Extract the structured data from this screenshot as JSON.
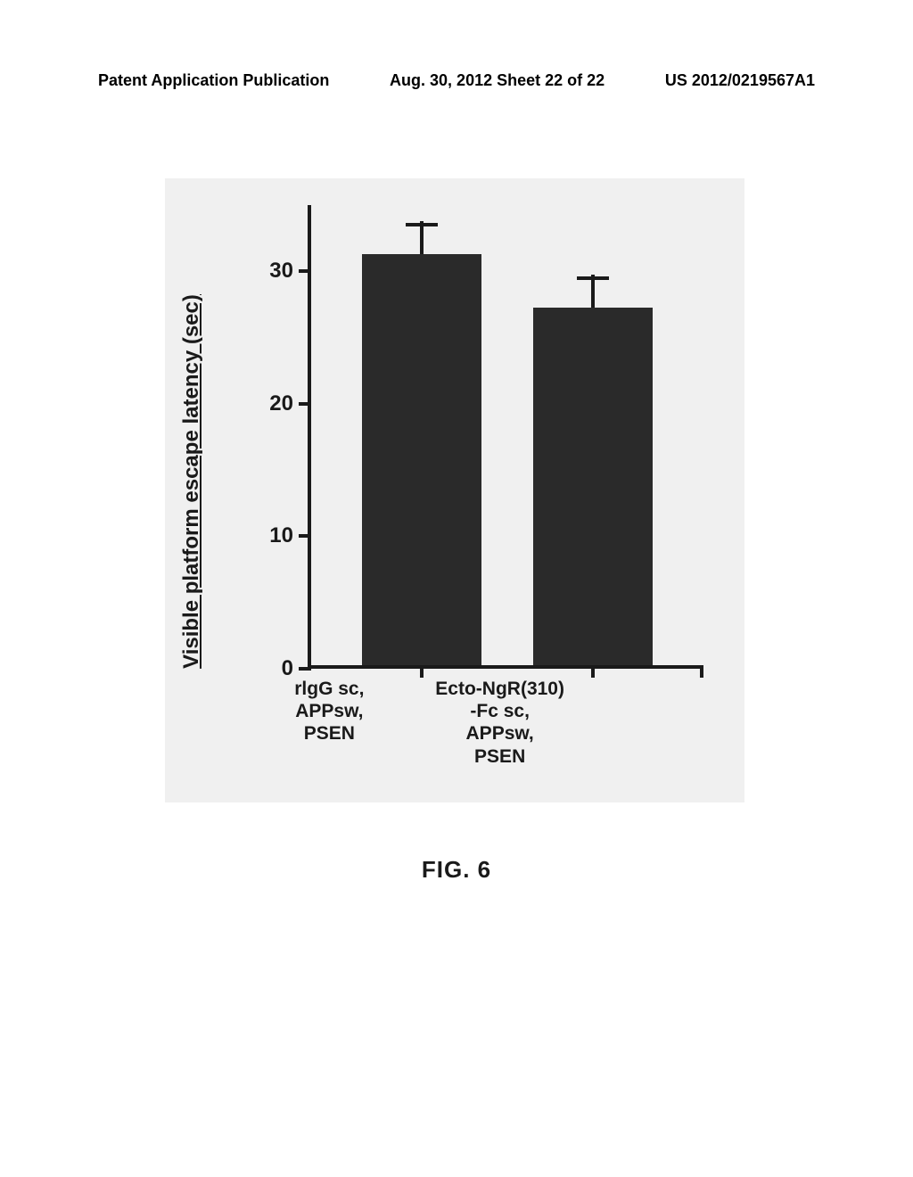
{
  "header": {
    "left": "Patent Application Publication",
    "center": "Aug. 30, 2012  Sheet 22 of 22",
    "right": "US 2012/0219567A1"
  },
  "chart": {
    "type": "bar",
    "y_axis_label": "Visible platform escape latency (sec)",
    "ylim": [
      0,
      35
    ],
    "yticks": [
      0,
      10,
      20,
      30
    ],
    "categories": [
      "rlgG sc,\nAPPsw,\nPSEN",
      "Ecto-NgR(310)\n-Fc sc,\nAPPsw,\nPSEN"
    ],
    "values": [
      31,
      27
    ],
    "errors": [
      2.5,
      2.5
    ],
    "bar_colors": [
      "#2a2a2a",
      "#2a2a2a"
    ],
    "bar_width": 0.35,
    "axis_color": "#1a1a1a",
    "background_color": "#f0f0f0",
    "title_fontsize": 24,
    "tick_fontsize": 24,
    "label_fontsize": 21
  },
  "figure_label": "FIG. 6"
}
